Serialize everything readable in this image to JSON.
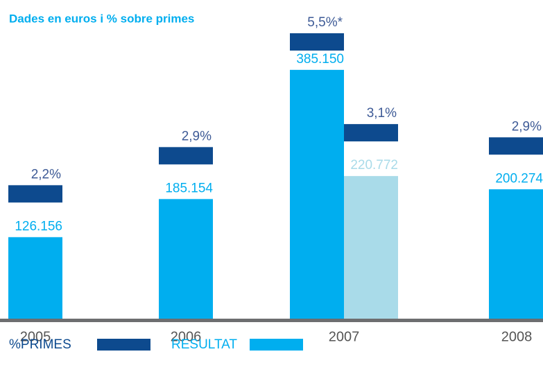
{
  "chart_data": {
    "type": "bar",
    "title": "Dades en euros i % sobre primes",
    "categories": [
      "2005",
      "2006",
      "2007",
      "2008"
    ],
    "ylim": [
      0,
      400000
    ],
    "series": [
      {
        "name": "%PRIMES",
        "color": "#0d4a8e",
        "values": [
          2.2,
          2.9,
          5.5,
          2.9
        ],
        "value_labels": [
          "2,2%",
          "2,9%",
          "5,5%*",
          "2,9%"
        ]
      },
      {
        "name": "RESULTAT",
        "color": "#00aeef",
        "values": [
          126156,
          185154,
          385150,
          200274
        ],
        "value_labels": [
          "126.156",
          "185.154",
          "385.150",
          "200.274"
        ]
      },
      {
        "color": "#0d4a8e",
        "values": [
          null,
          null,
          3.1,
          null
        ],
        "value_labels": [
          null,
          null,
          "3,1%",
          null
        ]
      },
      {
        "color": "#a9dbe9",
        "values": [
          null,
          null,
          220772,
          null
        ],
        "value_labels": [
          null,
          null,
          "220.772",
          null
        ]
      }
    ]
  }
}
